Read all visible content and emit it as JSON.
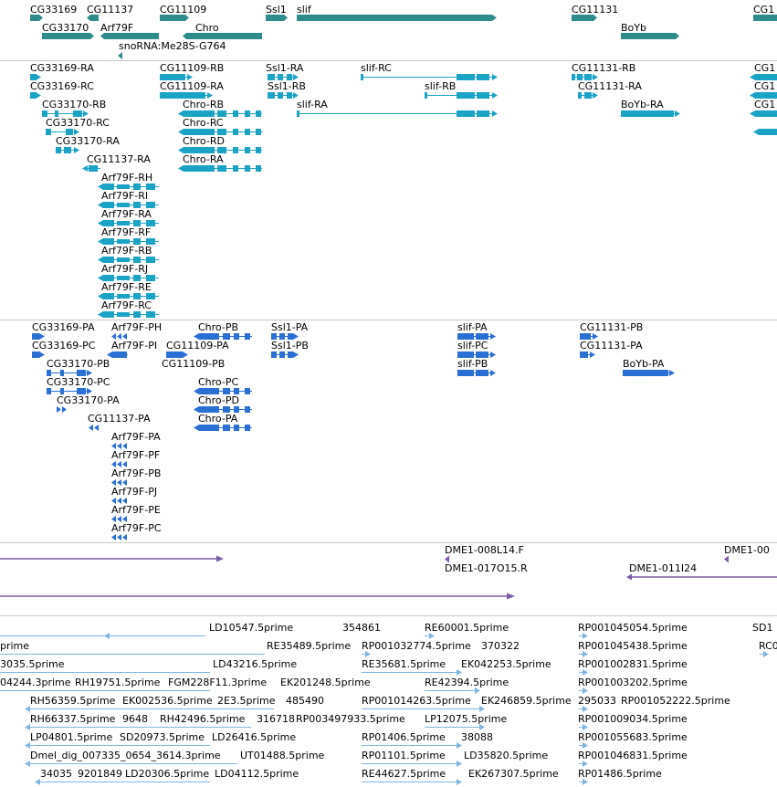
{
  "colors": {
    "gene": "#2e8b8b",
    "mrna": "#1ba3c6",
    "protein": "#2a6fd4",
    "clone": "#7b5aa6",
    "est": "#7fb6e0",
    "divider": "#c8c8c8",
    "background": "#ffffff"
  },
  "tracks": {
    "genes": {
      "features": [
        {
          "label": "CG33169",
          "label_color": "gene"
        },
        {
          "label": "CG11137"
        },
        {
          "label": "CG11109"
        },
        {
          "label": "Ssl1"
        },
        {
          "label": "slif"
        },
        {
          "label": "CG11131"
        },
        {
          "label": "CG1"
        },
        {
          "label": "CG33170"
        },
        {
          "label": "Arf79F"
        },
        {
          "label": "Chro"
        },
        {
          "label": "BoYb"
        },
        {
          "label": "snoRNA:Me28S-G764"
        }
      ]
    },
    "transcripts": {
      "labels": [
        "CG33169-RA",
        "CG33169-RC",
        "CG33170-RB",
        "CG33170-RC",
        "CG33170-RA",
        "CG11137-RA",
        "Arf79F-RH",
        "Arf79F-RI",
        "Arf79F-RA",
        "Arf79F-RF",
        "Arf79F-RB",
        "Arf79F-RJ",
        "Arf79F-RE",
        "Arf79F-RC",
        "CG11109-RB",
        "CG11109-RA",
        "Chro-RB",
        "Chro-RC",
        "Chro-RD",
        "Chro-RA",
        "Ssl1-RA",
        "Ssl1-RB",
        "slif-RA",
        "slif-RC",
        "slif-RB",
        "CG11131-RB",
        "CG11131-RA",
        "BoYb-RA",
        "CG1",
        "CG1",
        "CG1"
      ]
    },
    "proteins": {
      "labels": [
        "CG33169-PA",
        "CG33169-PC",
        "CG33170-PB",
        "CG33170-PC",
        "CG33170-PA",
        "CG11137-PA",
        "Arf79F-PH",
        "Arf79F-PI",
        "Arf79F-PA",
        "Arf79F-PF",
        "Arf79F-PB",
        "Arf79F-PJ",
        "Arf79F-PE",
        "Arf79F-PC",
        "CG11109-PA",
        "CG11109-PB",
        "Chro-PB",
        "Chro-PC",
        "Chro-PD",
        "Chro-PA",
        "Ssl1-PA",
        "Ssl1-PB",
        "slif-PA",
        "slif-PC",
        "slif-PB",
        "CG11131-PB",
        "CG11131-PA",
        "BoYb-PA"
      ]
    },
    "clones": {
      "labels": [
        "DME1-008L14.F",
        "DME1-017O15.R",
        "DME1-00",
        "DME1-011I24"
      ]
    },
    "ests": {
      "labels": [
        "LD10547.5prime",
        "354861",
        "RE60001.5prime",
        "RP001045054.5prime",
        "SD1",
        "prime",
        "RE35489.5prime",
        "RP001032774.5prime",
        "370322",
        "RP001045438.5prime",
        "RC0",
        "3035.5prime",
        "LD43216.5prime",
        "RE35681.5prime",
        "EK042253.5prime",
        "RP001002831.5prime",
        "04244.3prime",
        "RH19751.5prime",
        "FGM228F11.3prime",
        "EK201248.5prime",
        "RE42394.5prime",
        "RP001003202.5prime",
        "RH56359.5prime",
        "EK002536.5prime",
        "2E3.5prime",
        "485490",
        "RP001014263.5prime",
        "EK246859.5prime",
        "295033",
        "RP001052222.5prime",
        "RH66337.5prime",
        "9648",
        "RH42496.5prime",
        "316718",
        "RP003497933.5prime",
        "LP12075.5prime",
        "RP001009034.5prime",
        "LP04801.5prime",
        "SD20973.5prime",
        "LD26416.5prime",
        "RP01406.5prime",
        "38088",
        "RP001055683.5prime",
        "Dmel_dig_007335_0654_3614.3prime",
        "UT01488.5prime",
        "RP01101.5prime",
        "LD35820.5prime",
        "RP001046831.5prime",
        "34035",
        "9201849",
        "LD20306.5prime",
        "LD04112.5prime",
        "RE44627.5prime",
        "EK267307.5prime",
        "RP01486.5prime"
      ]
    }
  }
}
